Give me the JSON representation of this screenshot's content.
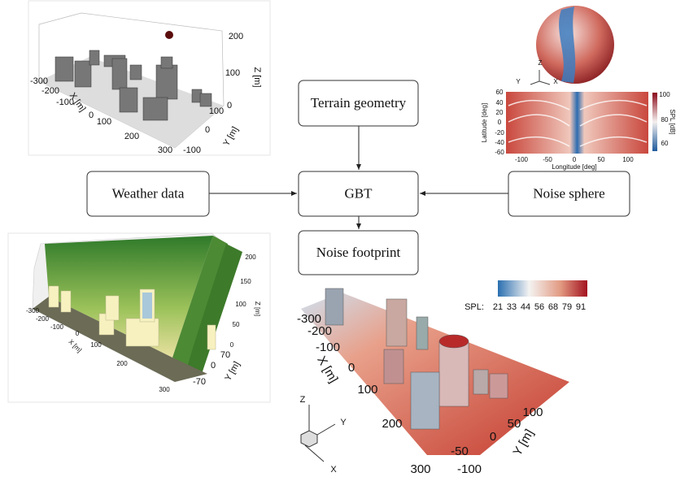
{
  "nodes": [
    {
      "label": "Terrain geometry"
    },
    {
      "label": "Weather data"
    },
    {
      "label": "GBT"
    },
    {
      "label": "Noise sphere"
    },
    {
      "label": "Noise footprint"
    }
  ],
  "terrain_plot": {
    "x_label": "X [m]",
    "y_label": "Y [m]",
    "z_label": "Z [m]",
    "x_ticks": [
      -300,
      -200,
      -100,
      0,
      100,
      200,
      300
    ],
    "y_ticks": [
      -100,
      0,
      100
    ],
    "z_ticks": [
      0,
      100,
      200
    ]
  },
  "sphere_plot": {
    "axes": [
      "Z",
      "Y",
      "X"
    ],
    "x_label": "Longitude [deg]",
    "y_label": "Latitude [deg]",
    "colorbar_label": "SPL [dB]",
    "x_ticks": [
      -100,
      -50,
      0,
      50,
      100
    ],
    "y_ticks": [
      60,
      40,
      20,
      0,
      -20,
      -40,
      -60
    ],
    "colorbar_ticks": [
      100,
      80,
      60
    ]
  },
  "weather_plot": {
    "x_label": "X [m]",
    "y_label": "Y [m]",
    "z_label": "Z [m]",
    "x_ticks": [
      -300,
      -200,
      -100,
      0,
      100,
      200,
      300
    ],
    "y_ticks": [
      -70,
      0,
      70
    ],
    "z_ticks": [
      200,
      150,
      100,
      50,
      0
    ]
  },
  "footprint_plot": {
    "colorbar_title": "SPL:",
    "colorbar_ticks": [
      21,
      33,
      44,
      56,
      68,
      79,
      91
    ],
    "x_label": "X [m]",
    "y_label": "Y [m]",
    "x_ticks": [
      -300,
      -200,
      -100,
      0,
      100,
      200,
      300
    ],
    "y_ticks": [
      -100,
      -50,
      0,
      50,
      100
    ],
    "axes": [
      "Z",
      "Y",
      "X"
    ]
  }
}
